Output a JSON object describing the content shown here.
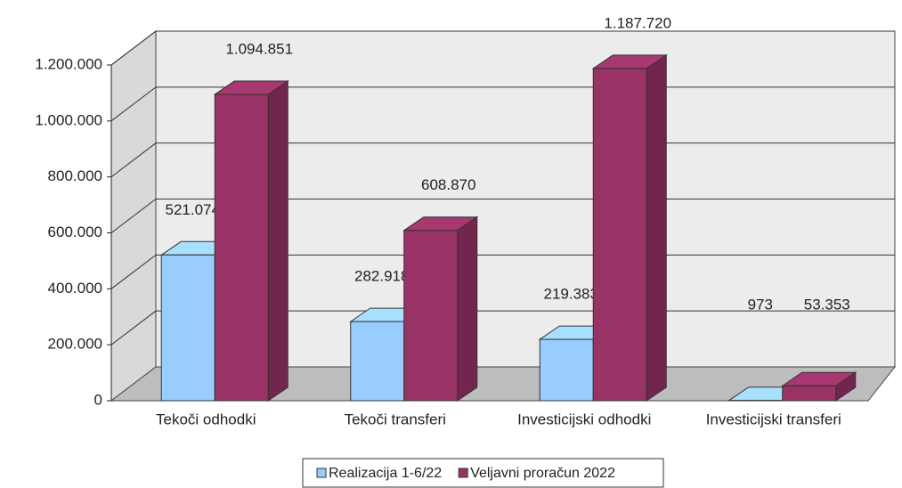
{
  "chart_data": {
    "type": "bar3d",
    "categories": [
      "Tekoči odhodki",
      "Tekoči transferi",
      "Investicijski odhodki",
      "Investicijski transferi"
    ],
    "series": [
      {
        "name": "Realizacija 1-6/22",
        "color": "#99ccff",
        "values": [
          521074,
          282918,
          219383,
          973
        ],
        "value_labels": [
          "521.074",
          "282.918",
          "219.383",
          "973"
        ]
      },
      {
        "name": "Veljavni proračun 2022",
        "color": "#993366",
        "values": [
          1094851,
          608870,
          1187720,
          53353
        ],
        "value_labels": [
          "1.094.851",
          "608.870",
          "1.187.720",
          "53.353"
        ]
      }
    ],
    "ylim": [
      0,
      1200000
    ],
    "yticks": [
      0,
      {
        "value": 200000,
        "label": "200.000"
      },
      {
        "value": 400000,
        "label": "400.000"
      },
      {
        "value": 600000,
        "label": "600.000"
      },
      {
        "value": 800000,
        "label": "800.000"
      },
      {
        "value": 1000000,
        "label": "1.000.000"
      },
      {
        "value": 1200000,
        "label": "1.200.000"
      }
    ],
    "grid": true,
    "legend": "bottom"
  }
}
